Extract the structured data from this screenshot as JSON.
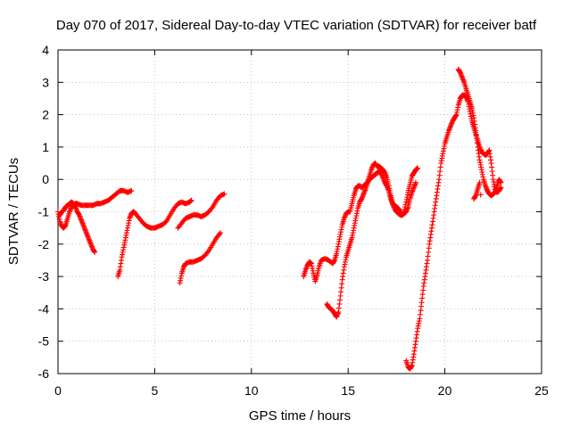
{
  "chart_data": {
    "type": "scatter",
    "title": "Day 070 of 2017, Sidereal Day-to-day VTEC variation (SDTVAR) for receiver batf",
    "xlabel": "GPS time / hours",
    "ylabel": "SDTVAR / TECUs",
    "xlim": [
      0,
      25
    ],
    "ylim": [
      -6,
      4
    ],
    "xticks": [
      0,
      5,
      10,
      15,
      20,
      25
    ],
    "yticks": [
      -6,
      -5,
      -4,
      -3,
      -2,
      -1,
      0,
      1,
      2,
      3,
      4
    ],
    "grid": true,
    "marker": "+",
    "color": "#ff0000",
    "series": [
      {
        "segments": [
          [
            [
              0.0,
              -1.0
            ],
            [
              0.1,
              -1.3
            ],
            [
              0.2,
              -1.45
            ],
            [
              0.3,
              -1.5
            ],
            [
              0.4,
              -1.4
            ],
            [
              0.5,
              -1.2
            ],
            [
              0.6,
              -1.0
            ],
            [
              0.7,
              -0.85
            ],
            [
              0.8,
              -0.8
            ],
            [
              0.9,
              -0.75
            ],
            [
              1.0,
              -0.75
            ],
            [
              1.2,
              -0.8
            ],
            [
              1.4,
              -0.8
            ],
            [
              1.6,
              -0.8
            ],
            [
              1.8,
              -0.8
            ],
            [
              2.0,
              -0.75
            ],
            [
              2.2,
              -0.75
            ],
            [
              2.4,
              -0.7
            ],
            [
              2.6,
              -0.65
            ],
            [
              2.8,
              -0.55
            ],
            [
              3.0,
              -0.45
            ],
            [
              3.2,
              -0.35
            ],
            [
              3.4,
              -0.35
            ],
            [
              3.6,
              -0.4
            ],
            [
              3.8,
              -0.35
            ]
          ],
          [
            [
              0.1,
              -1.1
            ],
            [
              0.2,
              -1.0
            ],
            [
              0.3,
              -0.95
            ],
            [
              0.4,
              -0.85
            ],
            [
              0.5,
              -0.8
            ],
            [
              0.6,
              -0.75
            ],
            [
              0.7,
              -0.7
            ],
            [
              0.8,
              -0.75
            ],
            [
              0.9,
              -0.85
            ],
            [
              1.0,
              -1.0
            ],
            [
              1.1,
              -1.1
            ],
            [
              1.2,
              -1.25
            ],
            [
              1.3,
              -1.4
            ],
            [
              1.4,
              -1.55
            ],
            [
              1.5,
              -1.7
            ],
            [
              1.6,
              -1.85
            ],
            [
              1.7,
              -2.0
            ],
            [
              1.8,
              -2.15
            ],
            [
              1.9,
              -2.25
            ]
          ],
          [
            [
              3.1,
              -3.0
            ],
            [
              3.2,
              -2.8
            ],
            [
              3.3,
              -2.4
            ],
            [
              3.4,
              -2.1
            ],
            [
              3.5,
              -1.8
            ],
            [
              3.6,
              -1.5
            ],
            [
              3.7,
              -1.2
            ],
            [
              3.8,
              -1.05
            ],
            [
              3.9,
              -1.0
            ],
            [
              4.0,
              -1.05
            ],
            [
              4.2,
              -1.2
            ],
            [
              4.4,
              -1.35
            ],
            [
              4.6,
              -1.45
            ],
            [
              4.8,
              -1.5
            ],
            [
              5.0,
              -1.5
            ],
            [
              5.2,
              -1.45
            ],
            [
              5.4,
              -1.4
            ],
            [
              5.6,
              -1.3
            ],
            [
              5.8,
              -1.1
            ],
            [
              6.0,
              -0.9
            ],
            [
              6.2,
              -0.75
            ],
            [
              6.4,
              -0.7
            ],
            [
              6.6,
              -0.75
            ],
            [
              6.8,
              -0.7
            ],
            [
              6.9,
              -0.65
            ]
          ],
          [
            [
              6.3,
              -3.2
            ],
            [
              6.4,
              -2.9
            ],
            [
              6.5,
              -2.7
            ],
            [
              6.6,
              -2.6
            ],
            [
              6.8,
              -2.55
            ],
            [
              7.0,
              -2.55
            ],
            [
              7.2,
              -2.5
            ],
            [
              7.4,
              -2.45
            ],
            [
              7.6,
              -2.35
            ],
            [
              7.8,
              -2.2
            ],
            [
              8.0,
              -2.0
            ],
            [
              8.2,
              -1.8
            ],
            [
              8.4,
              -1.65
            ]
          ],
          [
            [
              6.2,
              -1.5
            ],
            [
              6.4,
              -1.35
            ],
            [
              6.6,
              -1.2
            ],
            [
              6.8,
              -1.15
            ],
            [
              7.0,
              -1.1
            ],
            [
              7.2,
              -1.1
            ],
            [
              7.4,
              -1.15
            ],
            [
              7.6,
              -1.1
            ],
            [
              7.8,
              -1.0
            ],
            [
              8.0,
              -0.85
            ],
            [
              8.2,
              -0.65
            ],
            [
              8.4,
              -0.5
            ],
            [
              8.6,
              -0.45
            ]
          ],
          [
            [
              12.7,
              -3.0
            ],
            [
              12.8,
              -2.8
            ],
            [
              12.9,
              -2.65
            ],
            [
              13.0,
              -2.55
            ],
            [
              13.1,
              -2.6
            ],
            [
              13.2,
              -2.9
            ],
            [
              13.3,
              -3.15
            ],
            [
              13.4,
              -2.95
            ],
            [
              13.5,
              -2.7
            ],
            [
              13.6,
              -2.5
            ],
            [
              13.8,
              -2.45
            ],
            [
              14.0,
              -2.5
            ],
            [
              14.2,
              -2.6
            ],
            [
              14.3,
              -2.5
            ],
            [
              14.4,
              -2.3
            ],
            [
              14.5,
              -2.0
            ],
            [
              14.6,
              -1.7
            ],
            [
              14.7,
              -1.4
            ],
            [
              14.8,
              -1.2
            ],
            [
              14.9,
              -1.05
            ],
            [
              15.0,
              -1.0
            ],
            [
              15.1,
              -1.0
            ],
            [
              15.2,
              -0.75
            ],
            [
              15.3,
              -0.5
            ],
            [
              15.4,
              -0.3
            ],
            [
              15.5,
              -0.2
            ],
            [
              15.6,
              -0.2
            ],
            [
              15.7,
              -0.25
            ],
            [
              15.8,
              -0.2
            ],
            [
              15.9,
              -0.15
            ],
            [
              16.0,
              -0.1
            ],
            [
              16.1,
              0.1
            ],
            [
              16.2,
              0.3
            ],
            [
              16.3,
              0.45
            ],
            [
              16.4,
              0.5
            ],
            [
              16.5,
              0.4
            ],
            [
              16.6,
              0.4
            ],
            [
              16.7,
              0.35
            ],
            [
              16.8,
              0.3
            ],
            [
              16.9,
              0.2
            ],
            [
              17.0,
              0.05
            ],
            [
              17.1,
              -0.2
            ],
            [
              17.2,
              -0.5
            ],
            [
              17.3,
              -0.75
            ],
            [
              17.4,
              -0.9
            ],
            [
              17.5,
              -1.0
            ],
            [
              17.6,
              -1.05
            ],
            [
              17.7,
              -1.1
            ],
            [
              17.8,
              -1.1
            ],
            [
              17.9,
              -1.0
            ],
            [
              18.0,
              -0.7
            ],
            [
              18.1,
              -0.4
            ],
            [
              18.2,
              -0.15
            ],
            [
              18.3,
              0.1
            ],
            [
              18.4,
              0.2
            ],
            [
              18.5,
              0.3
            ],
            [
              18.6,
              0.35
            ]
          ],
          [
            [
              13.9,
              -3.85
            ],
            [
              14.0,
              -3.95
            ],
            [
              14.1,
              -4.0
            ],
            [
              14.2,
              -4.05
            ],
            [
              14.3,
              -4.15
            ],
            [
              14.4,
              -4.25
            ],
            [
              14.5,
              -4.1
            ],
            [
              14.6,
              -3.6
            ],
            [
              14.7,
              -3.1
            ],
            [
              14.8,
              -2.7
            ],
            [
              14.9,
              -2.4
            ],
            [
              15.0,
              -2.2
            ],
            [
              15.1,
              -2.0
            ],
            [
              15.2,
              -1.8
            ],
            [
              15.3,
              -1.5
            ],
            [
              15.4,
              -1.2
            ],
            [
              15.5,
              -0.9
            ],
            [
              15.6,
              -0.7
            ],
            [
              15.7,
              -0.6
            ],
            [
              15.8,
              -0.45
            ],
            [
              15.9,
              -0.3
            ],
            [
              16.0,
              -0.1
            ],
            [
              16.1,
              0.0
            ],
            [
              16.2,
              0.05
            ],
            [
              16.3,
              0.1
            ],
            [
              16.4,
              0.15
            ],
            [
              16.5,
              0.2
            ],
            [
              16.6,
              0.25
            ],
            [
              16.7,
              0.2
            ],
            [
              16.8,
              0.05
            ],
            [
              16.9,
              -0.1
            ],
            [
              17.0,
              -0.2
            ],
            [
              17.1,
              -0.35
            ],
            [
              17.2,
              -0.6
            ],
            [
              17.3,
              -0.75
            ],
            [
              17.4,
              -0.8
            ],
            [
              17.5,
              -0.85
            ],
            [
              17.6,
              -0.9
            ],
            [
              17.7,
              -1.0
            ],
            [
              17.8,
              -1.1
            ],
            [
              17.9,
              -1.05
            ],
            [
              18.0,
              -1.0
            ],
            [
              18.1,
              -0.85
            ],
            [
              18.2,
              -0.6
            ],
            [
              18.3,
              -0.4
            ],
            [
              18.4,
              -0.25
            ],
            [
              18.5,
              -0.1
            ]
          ],
          [
            [
              18.0,
              -5.6
            ],
            [
              18.1,
              -5.8
            ],
            [
              18.2,
              -5.85
            ],
            [
              18.3,
              -5.75
            ],
            [
              18.4,
              -5.4
            ],
            [
              18.5,
              -5.0
            ],
            [
              18.6,
              -4.6
            ],
            [
              18.7,
              -4.3
            ],
            [
              18.8,
              -3.8
            ],
            [
              18.9,
              -3.3
            ],
            [
              19.0,
              -2.9
            ],
            [
              19.1,
              -2.5
            ],
            [
              19.2,
              -2.0
            ],
            [
              19.3,
              -1.6
            ],
            [
              19.4,
              -1.2
            ],
            [
              19.5,
              -0.8
            ],
            [
              19.6,
              -0.4
            ],
            [
              19.7,
              0.0
            ],
            [
              19.8,
              0.5
            ],
            [
              19.9,
              0.8
            ],
            [
              20.0,
              1.1
            ],
            [
              20.1,
              1.3
            ],
            [
              20.2,
              1.5
            ],
            [
              20.3,
              1.65
            ],
            [
              20.4,
              1.8
            ],
            [
              20.5,
              1.9
            ],
            [
              20.6,
              2.0
            ],
            [
              20.7,
              2.3
            ],
            [
              20.8,
              2.5
            ],
            [
              20.9,
              2.6
            ],
            [
              21.0,
              2.6
            ],
            [
              21.1,
              2.55
            ],
            [
              21.2,
              2.4
            ],
            [
              21.3,
              2.1
            ],
            [
              21.4,
              1.8
            ],
            [
              21.5,
              1.6
            ],
            [
              21.6,
              1.4
            ],
            [
              21.7,
              1.2
            ],
            [
              21.8,
              1.0
            ],
            [
              21.9,
              0.85
            ],
            [
              22.0,
              0.8
            ],
            [
              22.1,
              0.75
            ],
            [
              22.2,
              0.8
            ],
            [
              22.3,
              0.9
            ],
            [
              22.4,
              0.5
            ],
            [
              22.5,
              0.0
            ],
            [
              22.6,
              -0.3
            ],
            [
              22.7,
              -0.4
            ],
            [
              22.8,
              -0.35
            ],
            [
              22.9,
              -0.25
            ]
          ],
          [
            [
              20.7,
              3.4
            ],
            [
              20.8,
              3.3
            ],
            [
              20.9,
              3.15
            ],
            [
              21.0,
              3.0
            ],
            [
              21.1,
              2.8
            ],
            [
              21.2,
              2.6
            ],
            [
              21.3,
              2.4
            ],
            [
              21.4,
              2.2
            ],
            [
              21.5,
              1.9
            ],
            [
              21.6,
              1.5
            ],
            [
              21.7,
              1.0
            ],
            [
              21.8,
              0.6
            ],
            [
              21.9,
              0.3
            ],
            [
              22.0,
              0.0
            ],
            [
              22.1,
              -0.2
            ],
            [
              22.2,
              -0.35
            ],
            [
              22.3,
              -0.45
            ],
            [
              22.4,
              -0.5
            ],
            [
              22.5,
              -0.45
            ],
            [
              22.6,
              -0.4
            ],
            [
              22.7,
              -0.2
            ],
            [
              22.8,
              0.0
            ],
            [
              22.9,
              -0.1
            ],
            [
              21.5,
              -0.6
            ],
            [
              21.6,
              -0.5
            ],
            [
              21.7,
              -0.3
            ],
            [
              21.8,
              -0.1
            ]
          ]
        ]
      }
    ]
  }
}
